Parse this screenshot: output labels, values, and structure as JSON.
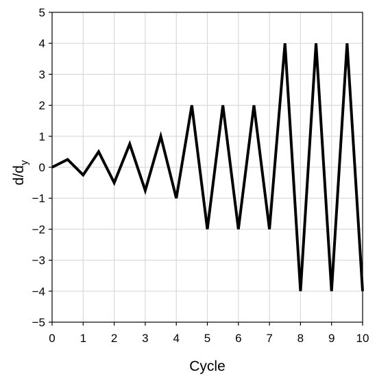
{
  "chart_data": {
    "type": "line",
    "title": "",
    "xlabel": "Cycle",
    "ylabel": "d/d",
    "ylabel_subscript": "y",
    "xlim": [
      0,
      10
    ],
    "ylim": [
      -5,
      5
    ],
    "x_ticks": [
      "0",
      "1",
      "2",
      "3",
      "4",
      "5",
      "6",
      "7",
      "8",
      "9",
      "10"
    ],
    "y_ticks": [
      "5",
      "4",
      "3",
      "2",
      "1",
      "0",
      "−1",
      "−2",
      "−3",
      "−4",
      "−5"
    ],
    "grid": true,
    "legend": "none",
    "series": [
      {
        "color": "#000000",
        "x": [
          0,
          0.5,
          1,
          1.5,
          2,
          2.5,
          3,
          3.5,
          4,
          4.5,
          5,
          5.5,
          6,
          6.5,
          7,
          7.5,
          8,
          8.5,
          9,
          9.5,
          10
        ],
        "y": [
          0,
          0.25,
          -0.25,
          0.5,
          -0.5,
          0.75,
          -0.75,
          1,
          -1,
          2,
          -2,
          2,
          -2,
          2,
          -2,
          4,
          -4,
          4,
          -4,
          4,
          -4
        ]
      }
    ]
  }
}
